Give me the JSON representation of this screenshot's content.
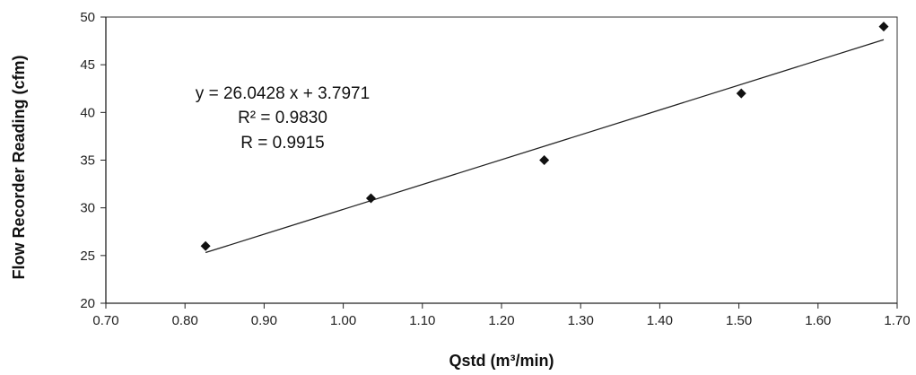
{
  "chart_data": {
    "type": "scatter",
    "title": "",
    "xlabel": "Qstd (m³/min)",
    "ylabel": "Flow Recorder Reading (cfm)",
    "xlim": [
      0.7,
      1.7
    ],
    "ylim": [
      20,
      50
    ],
    "x_ticks": [
      "0.70",
      "0.80",
      "0.90",
      "1.00",
      "1.10",
      "1.20",
      "1.30",
      "1.40",
      "1.50",
      "1.60",
      "1.70"
    ],
    "y_ticks": [
      "20",
      "25",
      "30",
      "35",
      "40",
      "45",
      "50"
    ],
    "grid": false,
    "legend": "none",
    "series": [
      {
        "points": [
          {
            "x": 0.826,
            "y": 26
          },
          {
            "x": 1.035,
            "y": 31
          },
          {
            "x": 1.254,
            "y": 35
          },
          {
            "x": 1.503,
            "y": 42
          },
          {
            "x": 1.683,
            "y": 49
          }
        ],
        "marker": "diamond",
        "color": "#111111"
      }
    ],
    "trendline": {
      "type": "linear",
      "slope": 26.0428,
      "intercept": 3.7971,
      "x_start": 0.826,
      "x_end": 1.683,
      "color": "#222222"
    },
    "annotations": {
      "equation": "y = 26.0428 x + 3.7971",
      "r_squared": "R² = 0.9830",
      "r": "R = 0.9915"
    }
  }
}
